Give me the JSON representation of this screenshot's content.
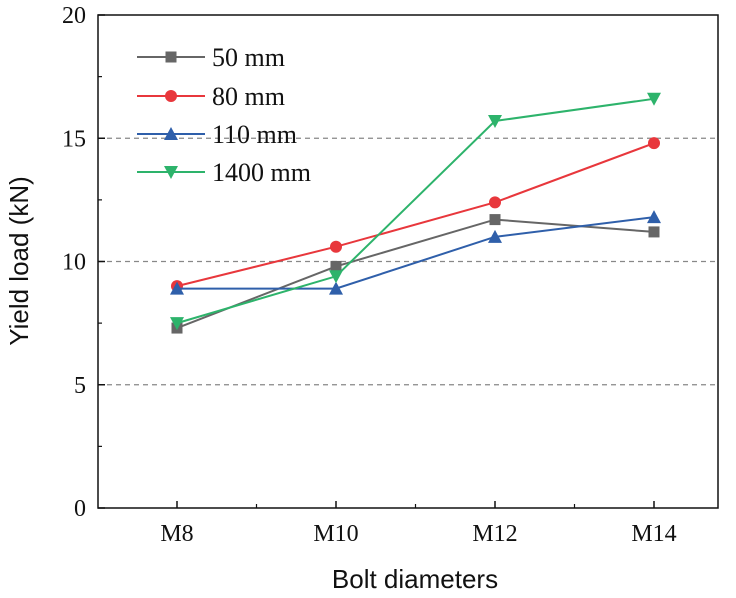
{
  "chart_data": {
    "type": "line",
    "title": "",
    "xlabel": "Bolt diameters",
    "ylabel": "Yield load (kN)",
    "categories": [
      "M8",
      "M10",
      "M12",
      "M14"
    ],
    "ylim": [
      0,
      20
    ],
    "yticks": [
      0,
      5,
      10,
      15,
      20
    ],
    "grid_y": [
      5,
      10,
      15
    ],
    "grid_style": "dashed",
    "legend_position": "top-left",
    "series": [
      {
        "name": "50 mm",
        "color": "#666666",
        "marker": "square",
        "values": [
          7.3,
          9.8,
          11.7,
          11.2
        ]
      },
      {
        "name": "80 mm",
        "color": "#e8373c",
        "marker": "circle",
        "values": [
          9.0,
          10.6,
          12.4,
          14.8
        ]
      },
      {
        "name": "110 mm",
        "color": "#2f5faa",
        "marker": "triangle-up",
        "values": [
          8.9,
          8.9,
          11.0,
          11.8
        ]
      },
      {
        "name": "1400 mm",
        "color": "#2db36b",
        "marker": "triangle-down",
        "values": [
          7.5,
          9.4,
          15.7,
          16.6
        ]
      }
    ]
  }
}
